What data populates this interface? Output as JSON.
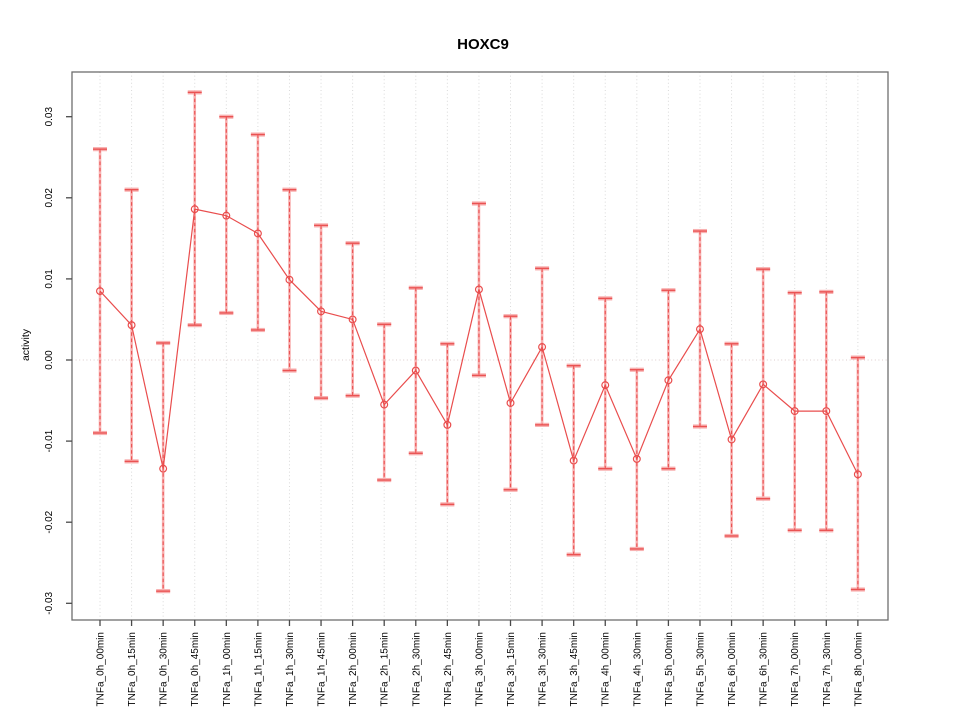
{
  "chart_data": {
    "type": "scatter",
    "title": "HOXC9",
    "xlabel": "",
    "ylabel": "activity",
    "ylim": [
      -0.03,
      0.03
    ],
    "grid": "vertical-dotted-per-category, dotted zero line",
    "legend": "none",
    "yticks": [
      {
        "value": 0.03,
        "label": "0.03"
      },
      {
        "value": 0.02,
        "label": "0.02"
      },
      {
        "value": 0.01,
        "label": "0.01"
      },
      {
        "value": 0.0,
        "label": "0.00"
      },
      {
        "value": -0.01,
        "label": "-0.01"
      },
      {
        "value": -0.02,
        "label": "-0.02"
      },
      {
        "value": -0.03,
        "label": "-0.03"
      }
    ],
    "categories": [
      "TNFa_0h_00min",
      "TNFa_0h_15min",
      "TNFa_0h_30min",
      "TNFa_0h_45min",
      "TNFa_1h_00min",
      "TNFa_1h_15min",
      "TNFa_1h_30min",
      "TNFa_1h_45min",
      "TNFa_2h_00min",
      "TNFa_2h_15min",
      "TNFa_2h_30min",
      "TNFa_2h_45min",
      "TNFa_3h_00min",
      "TNFa_3h_15min",
      "TNFa_3h_30min",
      "TNFa_3h_45min",
      "TNFa_4h_00min",
      "TNFa_4h_30min",
      "TNFa_5h_00min",
      "TNFa_5h_30min",
      "TNFa_6h_00min",
      "TNFa_6h_30min",
      "TNFa_7h_00min",
      "TNFa_7h_30min",
      "TNFa_8h_00min"
    ],
    "series": [
      {
        "name": "activity",
        "values": [
          0.0085,
          0.0043,
          -0.0134,
          0.0186,
          0.0178,
          0.0156,
          0.0099,
          0.006,
          0.005,
          -0.0055,
          -0.0013,
          -0.008,
          0.0087,
          -0.0053,
          0.0016,
          -0.0124,
          -0.0031,
          -0.0122,
          -0.0025,
          0.0038,
          -0.0098,
          -0.003,
          -0.0063,
          -0.0063,
          -0.0141
        ],
        "error_high": [
          0.026,
          0.021,
          0.0021,
          0.033,
          0.03,
          0.0278,
          0.021,
          0.0166,
          0.0144,
          0.0044,
          0.0089,
          0.002,
          0.0193,
          0.0054,
          0.0113,
          -0.0007,
          0.0076,
          -0.0012,
          0.0086,
          0.0159,
          0.002,
          0.0112,
          0.0083,
          0.0084,
          0.0003
        ],
        "error_low": [
          -0.009,
          -0.0125,
          -0.0285,
          0.0043,
          0.0058,
          0.0037,
          -0.0013,
          -0.0047,
          -0.0044,
          -0.0148,
          -0.0115,
          -0.0178,
          -0.0019,
          -0.016,
          -0.008,
          -0.024,
          -0.0134,
          -0.0233,
          -0.0134,
          -0.0082,
          -0.0217,
          -0.0171,
          -0.021,
          -0.021,
          -0.0283
        ]
      }
    ],
    "colors": {
      "point": "#e94d4d",
      "line": "#e94d4d",
      "errorbar_light": "#f8b1b1",
      "errorbar_dash": "#ea5252",
      "grid": "#d9d9d9",
      "zero_line": "#dccccc",
      "box": "#6e6e6e",
      "tick": "#4a4a4a",
      "text": "#000000"
    }
  }
}
